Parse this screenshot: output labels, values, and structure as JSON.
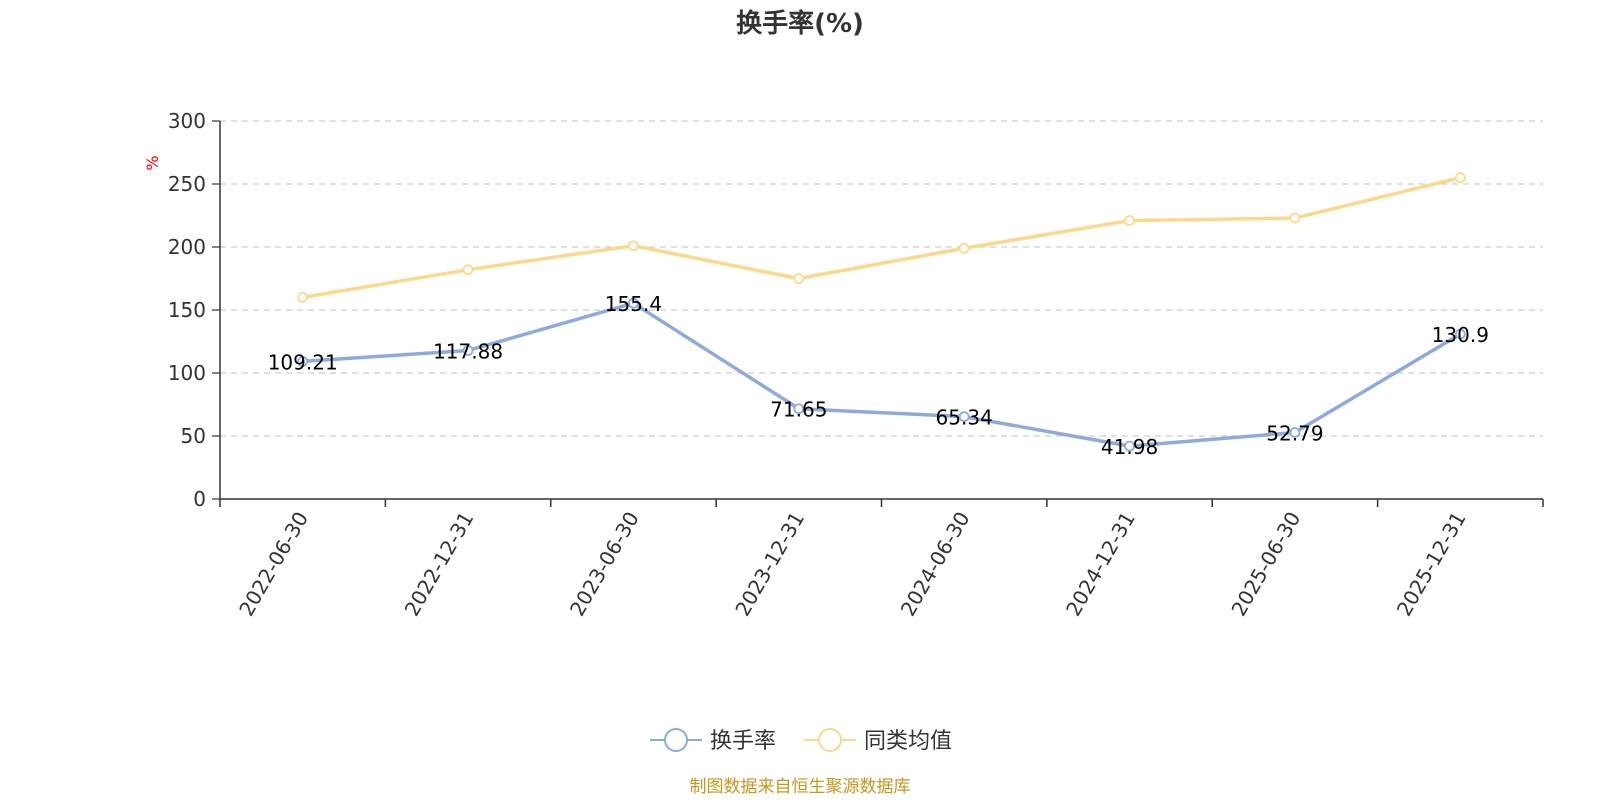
{
  "chart_data": {
    "type": "line",
    "title": "换手率(%)",
    "ylabel": "%",
    "categories": [
      "2022-06-30",
      "2022-12-31",
      "2023-06-30",
      "2023-12-31",
      "2024-06-30",
      "2024-12-31",
      "2025-06-30",
      "2025-12-31"
    ],
    "ylim": [
      0,
      300
    ],
    "yticks": [
      0,
      50,
      100,
      150,
      200,
      250,
      300
    ],
    "grid": true,
    "legend_position": "bottom-center",
    "series": [
      {
        "name": "换手率",
        "color": "#8eaadb",
        "values": [
          109.21,
          117.88,
          155.4,
          71.65,
          65.34,
          41.98,
          52.79,
          130.9
        ],
        "labels": [
          "109.21",
          "117.88",
          "155.4",
          "71.65",
          "65.34",
          "41.98",
          "52.79",
          "130.9"
        ],
        "show_labels": true
      },
      {
        "name": "同类均值",
        "color": "#fad98c",
        "values": [
          160,
          182,
          201,
          175,
          199,
          221,
          223,
          255
        ],
        "show_labels": false
      }
    ]
  },
  "source_text": "制图数据来自恒生聚源数据库",
  "source_color": "#c8961e"
}
